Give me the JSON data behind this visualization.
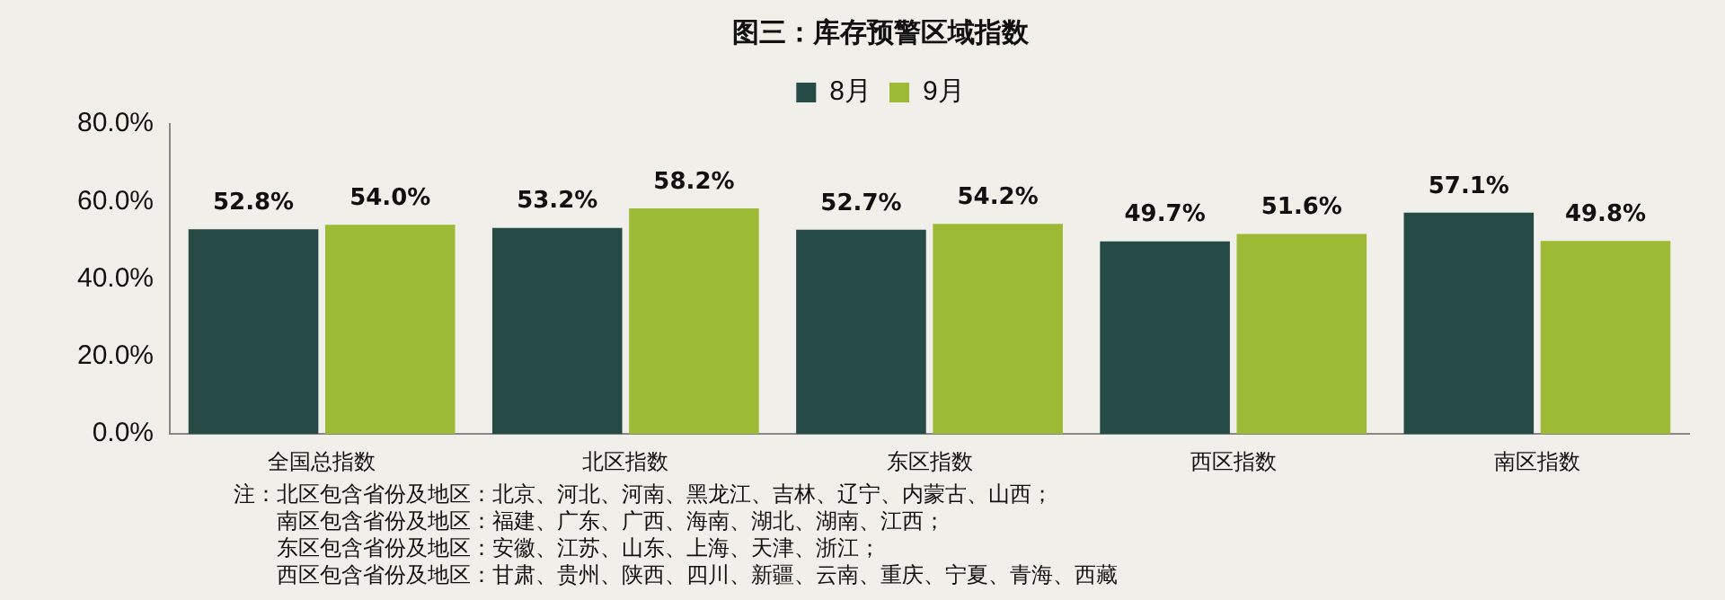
{
  "chart_data": {
    "type": "bar",
    "title": "图三：库存预警区域指数",
    "categories": [
      "全国总指数",
      "北区指数",
      "东区指数",
      "西区指数",
      "南区指数"
    ],
    "series": [
      {
        "name": "8月",
        "color": "#264a45",
        "values": [
          52.8,
          53.2,
          52.7,
          49.7,
          57.1
        ],
        "value_labels": [
          "52.8%",
          "53.2%",
          "52.7%",
          "49.7%",
          "57.1%"
        ]
      },
      {
        "name": "9月",
        "color": "#9dba36",
        "values": [
          54.0,
          58.2,
          54.2,
          51.6,
          49.8
        ],
        "value_labels": [
          "54.0%",
          "58.2%",
          "54.2%",
          "51.6%",
          "49.8%"
        ]
      }
    ],
    "ylim": [
      0,
      80
    ],
    "yticks": [
      {
        "value": 0,
        "label": "0.0%"
      },
      {
        "value": 20,
        "label": "20.0%"
      },
      {
        "value": 40,
        "label": "40.0%"
      },
      {
        "value": 60,
        "label": "60.0%"
      },
      {
        "value": 80,
        "label": "80.0%"
      }
    ],
    "grid": false,
    "legend": "top",
    "annotations": [
      "注：北区包含省份及地区：北京、河北、河南、黑龙江、吉林、辽宁、内蒙古、山西；",
      "南区包含省份及地区：福建、广东、广西、海南、湖北、湖南、江西；",
      "东区包含省份及地区：安徽、江苏、山东、上海、天津、浙江；",
      "西区包含省份及地区：甘肃、贵州、陕西、四川、新疆、云南、重庆、宁夏、青海、西藏"
    ]
  }
}
